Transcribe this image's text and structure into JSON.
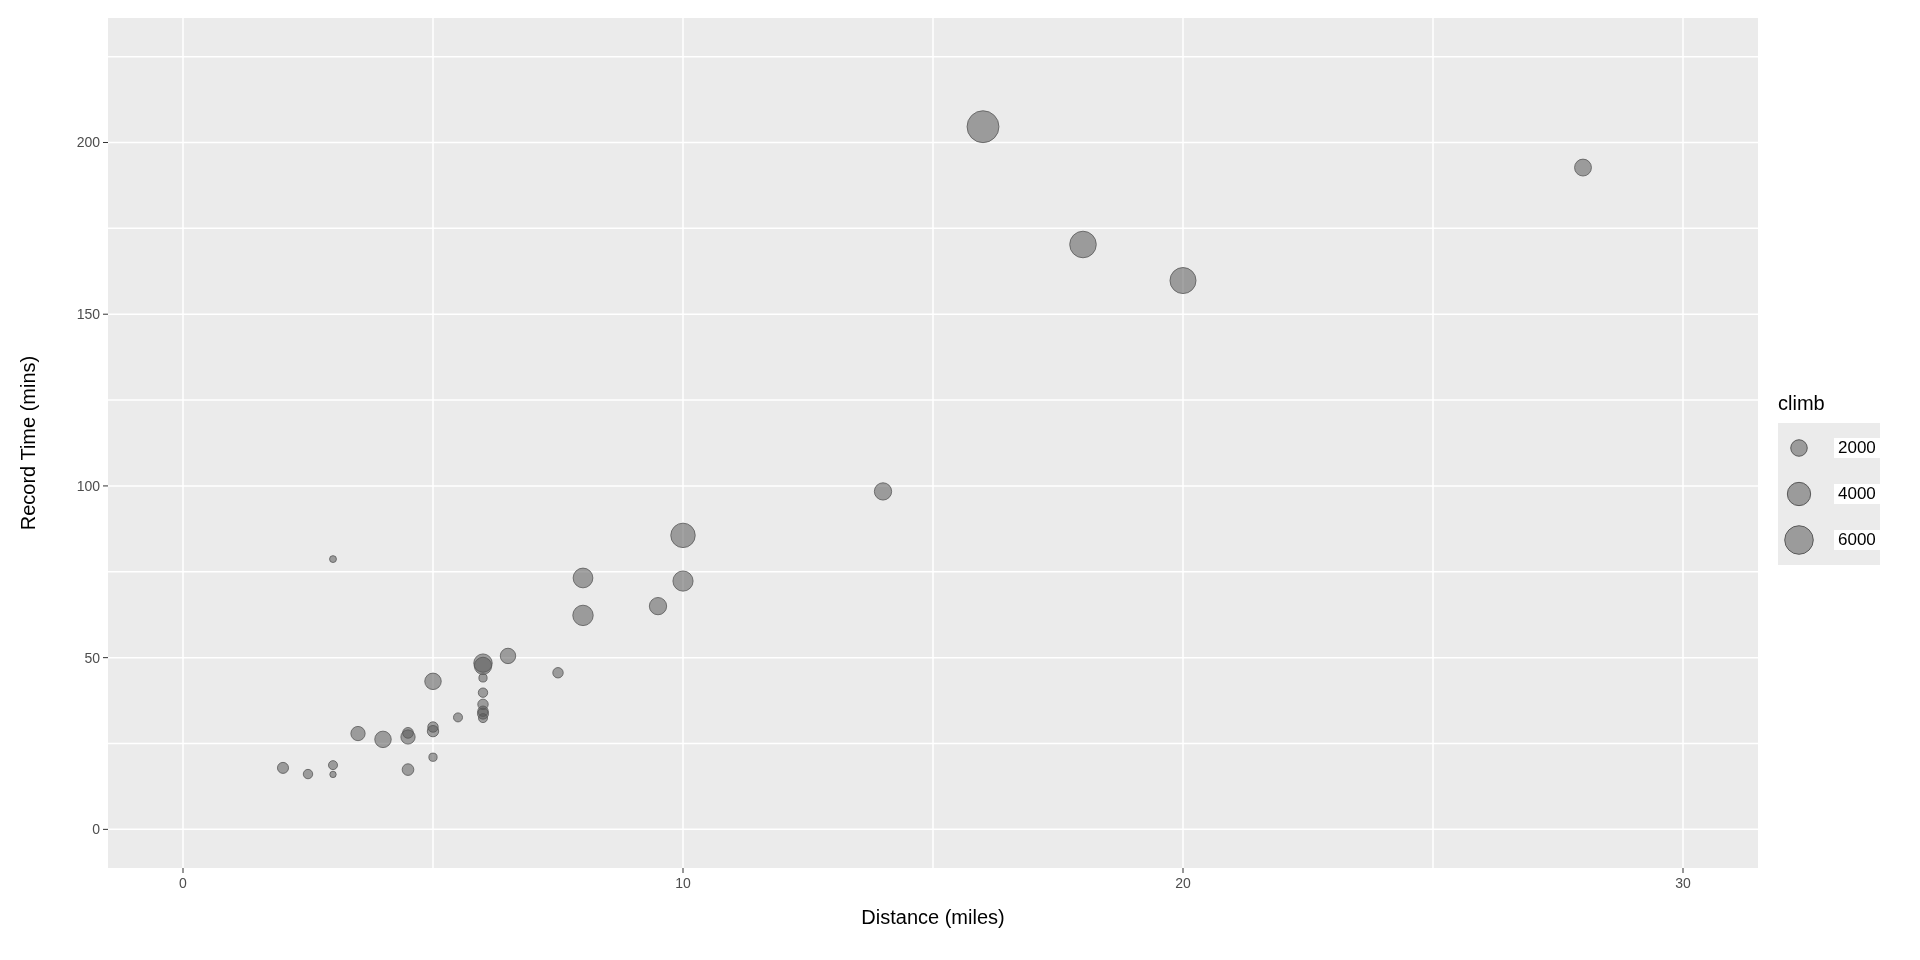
{
  "chart_data": {
    "type": "bubble",
    "xlabel": "Distance (miles)",
    "ylabel": "Record Time (mins)",
    "legend_title": "climb",
    "grid": true,
    "xlim": [
      -1.5,
      31.5
    ],
    "xticks": [
      0,
      {
        "value": 5,
        "label": null
      },
      10,
      {
        "value": 15,
        "label": null
      },
      20,
      {
        "value": 25,
        "label": null
      },
      30
    ],
    "ylim": [
      -11.25,
      236.25
    ],
    "yticks": [
      0,
      {
        "value": 25,
        "label": null
      },
      50,
      {
        "value": 75,
        "label": null
      },
      100,
      {
        "value": 125,
        "label": null
      },
      150,
      {
        "value": 175,
        "label": null
      },
      200,
      {
        "value": 225,
        "label": null
      }
    ],
    "size_legend": [
      2000,
      4000,
      6000
    ],
    "series": [
      {
        "color": "#595959",
        "x": [
          2.5,
          6,
          6,
          7.5,
          8,
          8,
          16,
          6,
          5,
          6,
          28,
          5,
          9.5,
          6,
          4.5,
          10,
          14,
          3,
          4.5,
          5.5,
          3,
          3.5,
          6,
          2,
          3,
          4,
          6,
          5,
          6.5,
          5,
          10,
          6,
          18,
          4.5,
          20
        ],
        "values": [
          16.1,
          48.4,
          33.7,
          45.6,
          62.3,
          73.2,
          204.6,
          36.4,
          29.8,
          39.8,
          192.7,
          43.1,
          65,
          44.1,
          26.9,
          72.3,
          98.4,
          78.7,
          17.4,
          32.6,
          16,
          27.9,
          47.6,
          17.9,
          18.7,
          26.2,
          34.4,
          28.6,
          50.5,
          21,
          85.6,
          32.4,
          170.3,
          28.1,
          159.8
        ],
        "sizes": [
          650,
          2500,
          900,
          800,
          3070,
          2866,
          7500,
          800,
          800,
          650,
          2100,
          2000,
          2200,
          500,
          1500,
          3000,
          2200,
          350,
          1000,
          600,
          300,
          1500,
          2200,
          900,
          600,
          2000,
          800,
          950,
          1750,
          500,
          4400,
          600,
          5200,
          850,
          5000
        ]
      }
    ]
  }
}
